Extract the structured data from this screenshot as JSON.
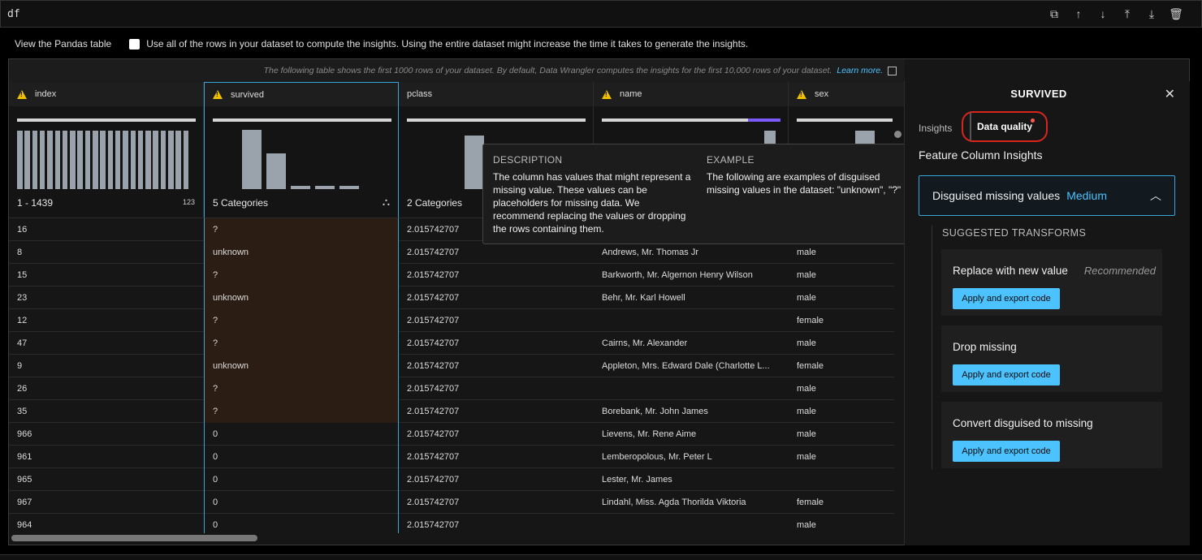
{
  "cell": {
    "code": "df",
    "toolbar_icons": [
      "duplicate-icon",
      "move-up-icon",
      "move-down-icon",
      "insert-above-icon",
      "insert-below-icon",
      "delete-icon"
    ]
  },
  "options": {
    "view_pandas": "View the Pandas table",
    "use_all_rows": "Use all of the rows in your dataset to compute the insights. Using the entire dataset might increase the time it takes to generate the insights."
  },
  "notice": {
    "text": "The following table shows the first 1000 rows of your dataset. By default, Data Wrangler computes the insights for the first 10,000 rows of your dataset.",
    "link": "Learn more."
  },
  "columns": [
    {
      "key": "index",
      "label": "index",
      "warn": true,
      "summary": "1 - 1439",
      "summary_icon": "123"
    },
    {
      "key": "survived",
      "label": "survived",
      "warn": true,
      "summary": "5 Categories",
      "summary_icon": "shapes-icon",
      "hist": [
        0.98,
        0.59,
        0.06,
        0.06,
        0.06
      ]
    },
    {
      "key": "pclass",
      "label": "pclass",
      "warn": false,
      "summary": "2 Categories"
    },
    {
      "key": "name",
      "label": "name",
      "warn": true
    },
    {
      "key": "sex",
      "label": "sex",
      "warn": true
    }
  ],
  "rows": [
    {
      "index": "16",
      "survived": "?",
      "pclass": "2.015742707",
      "name": "",
      "sex": ""
    },
    {
      "index": "8",
      "survived": "unknown",
      "pclass": "2.015742707",
      "name": "Andrews, Mr. Thomas Jr",
      "sex": "male"
    },
    {
      "index": "15",
      "survived": "?",
      "pclass": "2.015742707",
      "name": "Barkworth, Mr. Algernon Henry Wilson",
      "sex": "male"
    },
    {
      "index": "23",
      "survived": "unknown",
      "pclass": "2.015742707",
      "name": "Behr, Mr. Karl Howell",
      "sex": "male"
    },
    {
      "index": "12",
      "survived": "?",
      "pclass": "2.015742707",
      "name": "",
      "sex": "female"
    },
    {
      "index": "47",
      "survived": "?",
      "pclass": "2.015742707",
      "name": "Cairns, Mr. Alexander",
      "sex": "male"
    },
    {
      "index": "9",
      "survived": "unknown",
      "pclass": "2.015742707",
      "name": "Appleton, Mrs. Edward Dale (Charlotte L...",
      "sex": "female"
    },
    {
      "index": "26",
      "survived": "?",
      "pclass": "2.015742707",
      "name": "",
      "sex": "male"
    },
    {
      "index": "35",
      "survived": "?",
      "pclass": "2.015742707",
      "name": "Borebank, Mr. John James",
      "sex": "male"
    },
    {
      "index": "966",
      "survived": "0",
      "pclass": "2.015742707",
      "name": "Lievens, Mr. Rene Aime",
      "sex": "male"
    },
    {
      "index": "961",
      "survived": "0",
      "pclass": "2.015742707",
      "name": "Lemberopolous, Mr. Peter L",
      "sex": "male"
    },
    {
      "index": "965",
      "survived": "0",
      "pclass": "2.015742707",
      "name": "Lester, Mr. James",
      "sex": ""
    },
    {
      "index": "967",
      "survived": "0",
      "pclass": "2.015742707",
      "name": "Lindahl, Miss. Agda Thorilda Viktoria",
      "sex": "female"
    },
    {
      "index": "964",
      "survived": "0",
      "pclass": "2.015742707",
      "name": "",
      "sex": "male"
    }
  ],
  "tooltip": {
    "description_heading": "DESCRIPTION",
    "description": "The column has values that might represent a missing value. These values can be placeholders for missing data. We recommend replacing the values or dropping the rows containing them.",
    "example_heading": "EXAMPLE",
    "example": "The following are examples of disguised missing values in the dataset: \"unknown\", \"?\""
  },
  "panel": {
    "title": "SURVIVED",
    "tabs": [
      "Insights",
      "Data quality"
    ],
    "section_title": "Feature Column Insights",
    "issue": {
      "label": "Disguised missing values",
      "severity": "Medium"
    },
    "suggested_heading": "SUGGESTED TRANSFORMS",
    "transforms": [
      {
        "name": "Replace with new value",
        "badge": "Recommended",
        "button": "Apply and export code"
      },
      {
        "name": "Drop missing",
        "badge": "",
        "button": "Apply and export code"
      },
      {
        "name": "Convert disguised to missing",
        "badge": "",
        "button": "Apply and export code"
      }
    ]
  },
  "colors": {
    "accent": "#4cc3ff",
    "warning": "#f0c000",
    "highlight": "#d7261c"
  }
}
